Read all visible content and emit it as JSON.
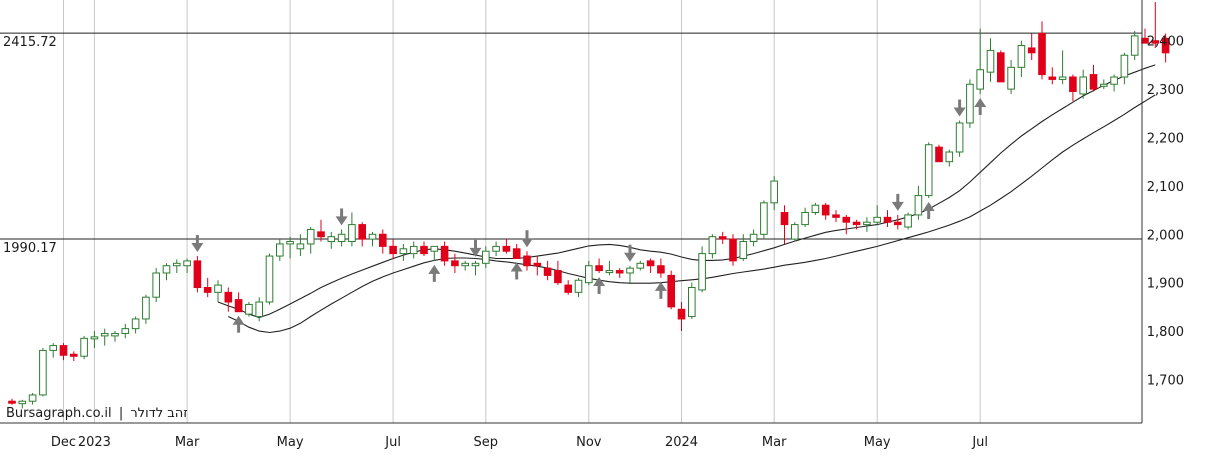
{
  "branding": {
    "site": "Bursagraph.co.il",
    "separator": "|",
    "symbol_name": "זהב לדולר"
  },
  "chart_data": {
    "type": "candlestick",
    "y_axis": {
      "min": 1610,
      "max": 2480,
      "ticks": [
        1700,
        1800,
        1900,
        2000,
        2100,
        2200,
        2300,
        2400
      ],
      "tick_labels": [
        "1,700",
        "1,800",
        "1,900",
        "2,000",
        "2,100",
        "2,200",
        "2,300",
        "2,400"
      ],
      "position": "right"
    },
    "x_axis": {
      "labels": [
        "Dec",
        "2023",
        "Mar",
        "May",
        "Jul",
        "Sep",
        "Nov",
        "2024",
        "Mar",
        "May",
        "Jul"
      ],
      "label_weeks": [
        5,
        8,
        17,
        27,
        37,
        46,
        56,
        65,
        74,
        84,
        94
      ]
    },
    "levels": [
      {
        "value": 2415.72,
        "label": "2415.72"
      },
      {
        "value": 1990.17,
        "label": "1990.17"
      }
    ],
    "candles": [
      [
        1655,
        1660,
        1648,
        1652
      ],
      [
        1650,
        1658,
        1640,
        1655
      ],
      [
        1655,
        1672,
        1648,
        1668
      ],
      [
        1668,
        1765,
        1665,
        1760
      ],
      [
        1760,
        1775,
        1745,
        1770
      ],
      [
        1770,
        1775,
        1740,
        1750
      ],
      [
        1752,
        1758,
        1738,
        1748
      ],
      [
        1748,
        1790,
        1742,
        1785
      ],
      [
        1785,
        1800,
        1765,
        1788
      ],
      [
        1790,
        1805,
        1770,
        1795
      ],
      [
        1790,
        1800,
        1778,
        1795
      ],
      [
        1795,
        1815,
        1785,
        1805
      ],
      [
        1805,
        1830,
        1795,
        1825
      ],
      [
        1825,
        1875,
        1815,
        1870
      ],
      [
        1870,
        1930,
        1860,
        1920
      ],
      [
        1920,
        1940,
        1905,
        1935
      ],
      [
        1935,
        1948,
        1920,
        1940
      ],
      [
        1935,
        1950,
        1920,
        1945
      ],
      [
        1945,
        1955,
        1880,
        1890
      ],
      [
        1890,
        1910,
        1870,
        1880
      ],
      [
        1880,
        1905,
        1860,
        1895
      ],
      [
        1880,
        1890,
        1840,
        1860
      ],
      [
        1865,
        1880,
        1840,
        1840
      ],
      [
        1835,
        1860,
        1830,
        1855
      ],
      [
        1830,
        1870,
        1820,
        1860
      ],
      [
        1860,
        1960,
        1855,
        1955
      ],
      [
        1955,
        1990,
        1945,
        1980
      ],
      [
        1980,
        1995,
        1950,
        1985
      ],
      [
        1970,
        2000,
        1955,
        1980
      ],
      [
        1980,
        2015,
        1960,
        2010
      ],
      [
        2005,
        2030,
        1985,
        1995
      ],
      [
        1985,
        2005,
        1970,
        1995
      ],
      [
        1985,
        2010,
        1975,
        2000
      ],
      [
        1985,
        2045,
        1975,
        2020
      ],
      [
        2020,
        2025,
        1975,
        1990
      ],
      [
        1990,
        2005,
        1975,
        2000
      ],
      [
        2000,
        2010,
        1960,
        1975
      ],
      [
        1975,
        1990,
        1950,
        1960
      ],
      [
        1960,
        1980,
        1945,
        1970
      ],
      [
        1960,
        1985,
        1950,
        1975
      ],
      [
        1975,
        1985,
        1955,
        1960
      ],
      [
        1965,
        1975,
        1945,
        1975
      ],
      [
        1975,
        1985,
        1935,
        1945
      ],
      [
        1945,
        1960,
        1920,
        1935
      ],
      [
        1935,
        1945,
        1925,
        1940
      ],
      [
        1935,
        1945,
        1915,
        1940
      ],
      [
        1940,
        1975,
        1930,
        1965
      ],
      [
        1965,
        1985,
        1955,
        1975
      ],
      [
        1975,
        1990,
        1960,
        1965
      ],
      [
        1970,
        1980,
        1950,
        1950
      ],
      [
        1955,
        1965,
        1925,
        1935
      ],
      [
        1940,
        1955,
        1915,
        1935
      ],
      [
        1930,
        1945,
        1905,
        1915
      ],
      [
        1925,
        1945,
        1895,
        1900
      ],
      [
        1895,
        1905,
        1875,
        1880
      ],
      [
        1880,
        1910,
        1870,
        1905
      ],
      [
        1900,
        1945,
        1895,
        1935
      ],
      [
        1935,
        1950,
        1920,
        1925
      ],
      [
        1925,
        1945,
        1915,
        1925
      ],
      [
        1925,
        1930,
        1910,
        1920
      ],
      [
        1920,
        1935,
        1900,
        1930
      ],
      [
        1930,
        1945,
        1925,
        1940
      ],
      [
        1945,
        1950,
        1920,
        1935
      ],
      [
        1935,
        1950,
        1910,
        1920
      ],
      [
        1915,
        1925,
        1845,
        1850
      ],
      [
        1845,
        1860,
        1800,
        1825
      ],
      [
        1830,
        1900,
        1825,
        1890
      ],
      [
        1885,
        1975,
        1880,
        1960
      ],
      [
        1960,
        2000,
        1950,
        1995
      ],
      [
        1995,
        2005,
        1980,
        1990
      ],
      [
        1990,
        2000,
        1935,
        1945
      ],
      [
        1950,
        2000,
        1945,
        1985
      ],
      [
        1985,
        2010,
        1975,
        2000
      ],
      [
        2000,
        2070,
        1990,
        2065
      ],
      [
        2065,
        2120,
        2050,
        2110
      ],
      [
        2045,
        2060,
        1980,
        2020
      ],
      [
        1990,
        2025,
        1985,
        2020
      ],
      [
        2020,
        2055,
        2015,
        2045
      ],
      [
        2045,
        2065,
        2040,
        2060
      ],
      [
        2060,
        2065,
        2030,
        2040
      ],
      [
        2040,
        2050,
        2025,
        2035
      ],
      [
        2035,
        2040,
        2000,
        2025
      ],
      [
        2025,
        2030,
        2010,
        2020
      ],
      [
        2020,
        2035,
        2005,
        2025
      ],
      [
        2025,
        2060,
        2020,
        2035
      ],
      [
        2035,
        2050,
        2015,
        2025
      ],
      [
        2025,
        2040,
        2010,
        2020
      ],
      [
        2015,
        2045,
        2010,
        2040
      ],
      [
        2040,
        2100,
        2030,
        2080
      ],
      [
        2080,
        2190,
        2075,
        2185
      ],
      [
        2180,
        2185,
        2150,
        2150
      ],
      [
        2150,
        2175,
        2140,
        2170
      ],
      [
        2170,
        2235,
        2160,
        2230
      ],
      [
        2230,
        2320,
        2220,
        2310
      ],
      [
        2300,
        2425,
        2290,
        2340
      ],
      [
        2335,
        2405,
        2315,
        2380
      ],
      [
        2375,
        2380,
        2320,
        2315
      ],
      [
        2300,
        2360,
        2290,
        2345
      ],
      [
        2345,
        2400,
        2325,
        2390
      ],
      [
        2385,
        2415,
        2360,
        2375
      ],
      [
        2415,
        2440,
        2320,
        2330
      ],
      [
        2325,
        2345,
        2310,
        2320
      ],
      [
        2320,
        2380,
        2310,
        2325
      ],
      [
        2325,
        2330,
        2275,
        2295
      ],
      [
        2290,
        2340,
        2280,
        2325
      ],
      [
        2330,
        2350,
        2295,
        2300
      ],
      [
        2310,
        2320,
        2300,
        2310
      ],
      [
        2310,
        2330,
        2295,
        2325
      ],
      [
        2325,
        2375,
        2310,
        2370
      ],
      [
        2370,
        2420,
        2360,
        2410
      ],
      [
        2405,
        2425,
        2395,
        2395
      ],
      [
        2400,
        2480,
        2385,
        2395
      ],
      [
        2405,
        2415,
        2355,
        2375
      ]
    ],
    "moving_averages": [
      {
        "values": [
          null,
          null,
          null,
          null,
          null,
          null,
          null,
          null,
          null,
          null,
          null,
          null,
          null,
          null,
          null,
          null,
          null,
          null,
          null,
          null,
          1860,
          1852,
          1845,
          1835,
          1828,
          1835,
          1845,
          1856,
          1867,
          1878,
          1890,
          1900,
          1909,
          1918,
          1926,
          1934,
          1942,
          1950,
          1957,
          1963,
          1968,
          1970,
          1968,
          1965,
          1961,
          1957,
          1953,
          1950,
          1950,
          1950,
          1952,
          1955,
          1958,
          1961,
          1966,
          1971,
          1976,
          1978,
          1979,
          1977,
          1973,
          1968,
          1965,
          1963,
          1959,
          1953,
          1948,
          1946,
          1946,
          1947,
          1950,
          1955,
          1960,
          1966,
          1972,
          1979,
          1986,
          1992,
          1998,
          2004,
          2008,
          2011,
          2014,
          2017,
          2020,
          2025,
          2030,
          2036,
          2043,
          2052,
          2064,
          2076,
          2090,
          2108,
          2128,
          2148,
          2168,
          2186,
          2203,
          2218,
          2233,
          2247,
          2260,
          2273,
          2286,
          2297,
          2308,
          2318,
          2327,
          2335,
          2343,
          2350
        ]
      },
      {
        "values": [
          null,
          null,
          null,
          null,
          null,
          null,
          null,
          null,
          null,
          null,
          null,
          null,
          null,
          null,
          null,
          null,
          null,
          null,
          null,
          null,
          null,
          1830,
          1820,
          1808,
          1800,
          1797,
          1800,
          1806,
          1816,
          1830,
          1843,
          1856,
          1868,
          1880,
          1892,
          1903,
          1912,
          1920,
          1927,
          1934,
          1941,
          1946,
          1950,
          1951,
          1951,
          1950,
          1948,
          1945,
          1943,
          1940,
          1937,
          1934,
          1930,
          1925,
          1919,
          1914,
          1909,
          1905,
          1902,
          1900,
          1899,
          1899,
          1899,
          1900,
          1902,
          1904,
          1906,
          1908,
          1911,
          1915,
          1919,
          1922,
          1925,
          1928,
          1932,
          1936,
          1939,
          1942,
          1946,
          1950,
          1955,
          1960,
          1965,
          1970,
          1975,
          1981,
          1987,
          1993,
          1999,
          2005,
          2012,
          2019,
          2027,
          2036,
          2048,
          2060,
          2074,
          2088,
          2104,
          2120,
          2137,
          2154,
          2170,
          2184,
          2197,
          2210,
          2222,
          2235,
          2248,
          2262,
          2275,
          2288
        ]
      }
    ],
    "signals": [
      {
        "week": 18,
        "type": "down"
      },
      {
        "week": 22,
        "type": "up"
      },
      {
        "week": 32,
        "type": "down"
      },
      {
        "week": 41,
        "type": "up"
      },
      {
        "week": 45,
        "type": "down"
      },
      {
        "week": 49,
        "type": "up"
      },
      {
        "week": 50,
        "type": "down"
      },
      {
        "week": 57,
        "type": "up"
      },
      {
        "week": 60,
        "type": "down"
      },
      {
        "week": 63,
        "type": "up"
      },
      {
        "week": 86,
        "type": "down"
      },
      {
        "week": 89,
        "type": "up"
      },
      {
        "week": 92,
        "type": "down"
      },
      {
        "week": 94,
        "type": "up"
      }
    ]
  }
}
